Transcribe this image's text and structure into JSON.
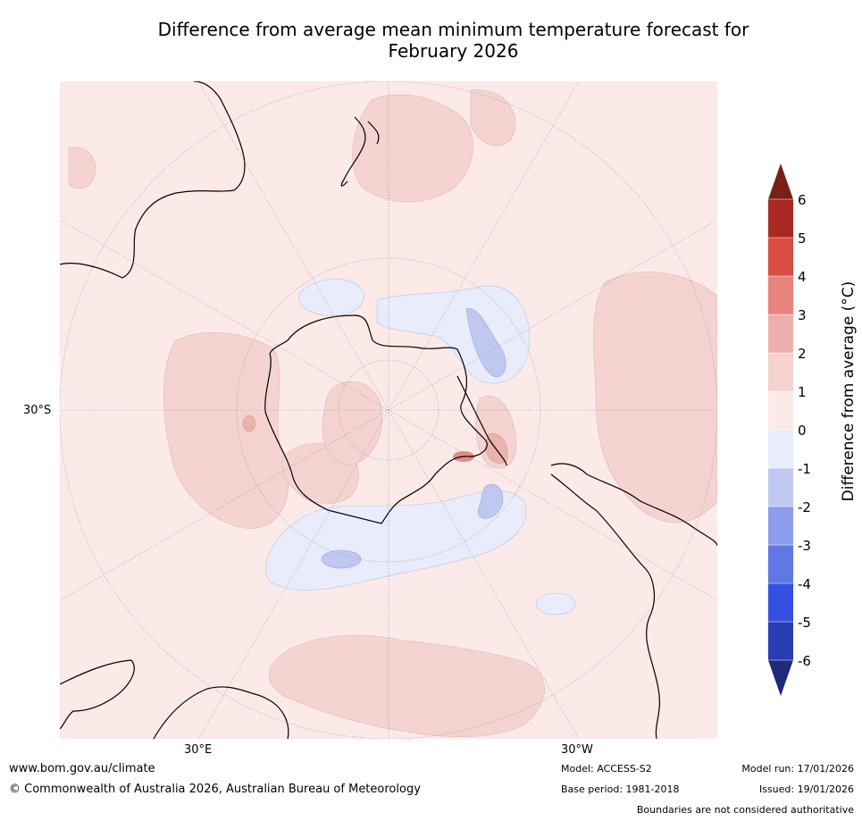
{
  "title": {
    "line1": "Difference from average mean minimum temperature forecast for",
    "line2": "February 2026"
  },
  "map": {
    "projection": "south-polar-stereographic",
    "lat_label": "30°S",
    "lon_labels": {
      "east": "30°E",
      "west": "30°W"
    },
    "fill_colors": {
      "band_0_1": "#fbeae8",
      "band_1_2": "#f4d3d1",
      "band_2_3": "#eab3ad",
      "band_3_4": "#e38a81",
      "band_m1_0": "#e8ecfb",
      "band_m2_m1": "#c0c8f2",
      "coast": "#000000",
      "grid": "#888888"
    }
  },
  "colorbar": {
    "label": "Difference from average (°C)",
    "ticks": [
      "6",
      "5",
      "4",
      "3",
      "2",
      "1",
      "0",
      "-1",
      "-2",
      "-3",
      "-4",
      "-5",
      "-6"
    ],
    "top_extend_color": "#7a1f17",
    "bottom_extend_color": "#1e2a7a",
    "segments": [
      {
        "range": "5 to 6",
        "color": "#a92a22"
      },
      {
        "range": "4 to 5",
        "color": "#d94e42"
      },
      {
        "range": "3 to 4",
        "color": "#e8847c"
      },
      {
        "range": "2 to 3",
        "color": "#eeb0aa"
      },
      {
        "range": "1 to 2",
        "color": "#f4d3d1"
      },
      {
        "range": "0 to 1",
        "color": "#fbeae8"
      },
      {
        "range": "-1 to 0",
        "color": "#e8ecfb"
      },
      {
        "range": "-2 to -1",
        "color": "#c0c8f2"
      },
      {
        "range": "-3 to -2",
        "color": "#8d9ced"
      },
      {
        "range": "-4 to -3",
        "color": "#6077e6"
      },
      {
        "range": "-5 to -4",
        "color": "#3550e0"
      },
      {
        "range": "-6 to -5",
        "color": "#2a3db3"
      }
    ]
  },
  "footer": {
    "website": "www.bom.gov.au/climate",
    "copyright": "© Commonwealth of Australia 2026, Australian Bureau of Meteorology",
    "model": "Model: ACCESS-S2",
    "base_period": "Base period: 1981-2018",
    "model_run": "Model run: 17/01/2026",
    "issued": "Issued: 19/01/2026",
    "disclaimer": "Boundaries are not considered authoritative"
  }
}
